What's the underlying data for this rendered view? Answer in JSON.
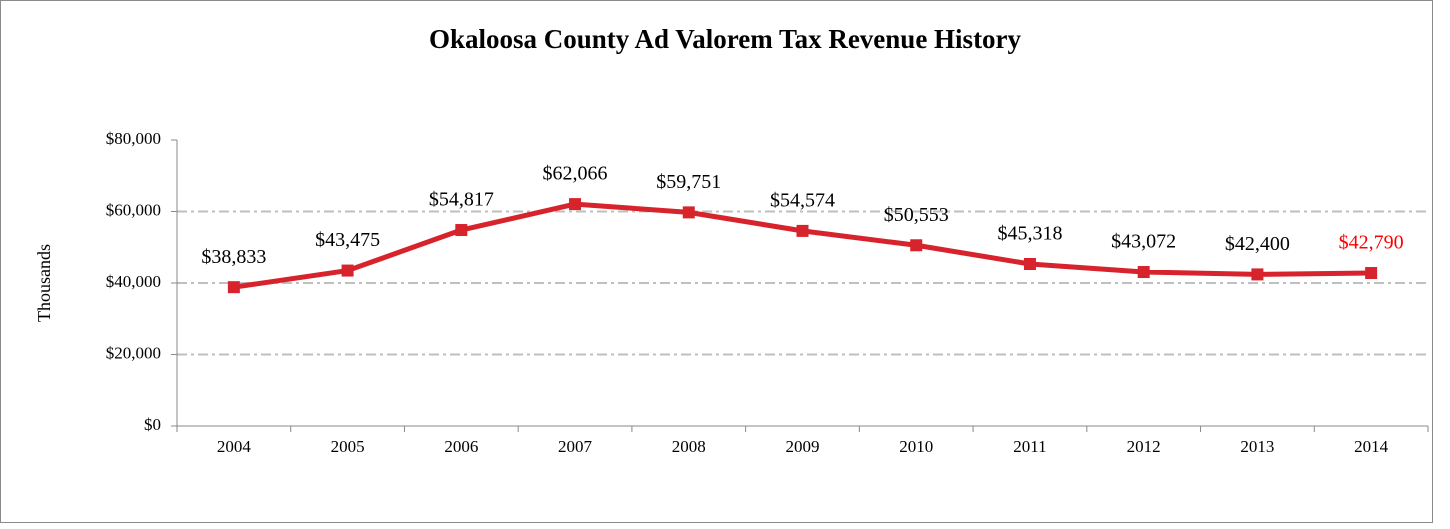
{
  "chart_data": {
    "type": "line",
    "title": "Okaloosa County Ad Valorem Tax Revenue History",
    "y_label": "Thousands",
    "categories": [
      "2004",
      "2005",
      "2006",
      "2007",
      "2008",
      "2009",
      "2010",
      "2011",
      "2012",
      "2013",
      "2014"
    ],
    "values": [
      38833,
      43475,
      54817,
      62066,
      59751,
      54574,
      50553,
      45318,
      43072,
      42400,
      42790
    ],
    "value_labels": [
      "$38,833",
      "$43,475",
      "$54,817",
      "$62,066",
      "$59,751",
      "$54,574",
      "$50,553",
      "$45,318",
      "$43,072",
      "$42,400",
      "$42,790"
    ],
    "color": "#d7232b",
    "highlight_label_color": "#ff0000",
    "ylim": [
      0,
      80000
    ],
    "yticks": [
      {
        "value": 0,
        "label": "$0"
      },
      {
        "value": 20000,
        "label": "$20,000"
      },
      {
        "value": 40000,
        "label": "$40,000"
      },
      {
        "value": 60000,
        "label": "$60,000"
      },
      {
        "value": 80000,
        "label": "$80,000"
      }
    ],
    "grid": true
  }
}
